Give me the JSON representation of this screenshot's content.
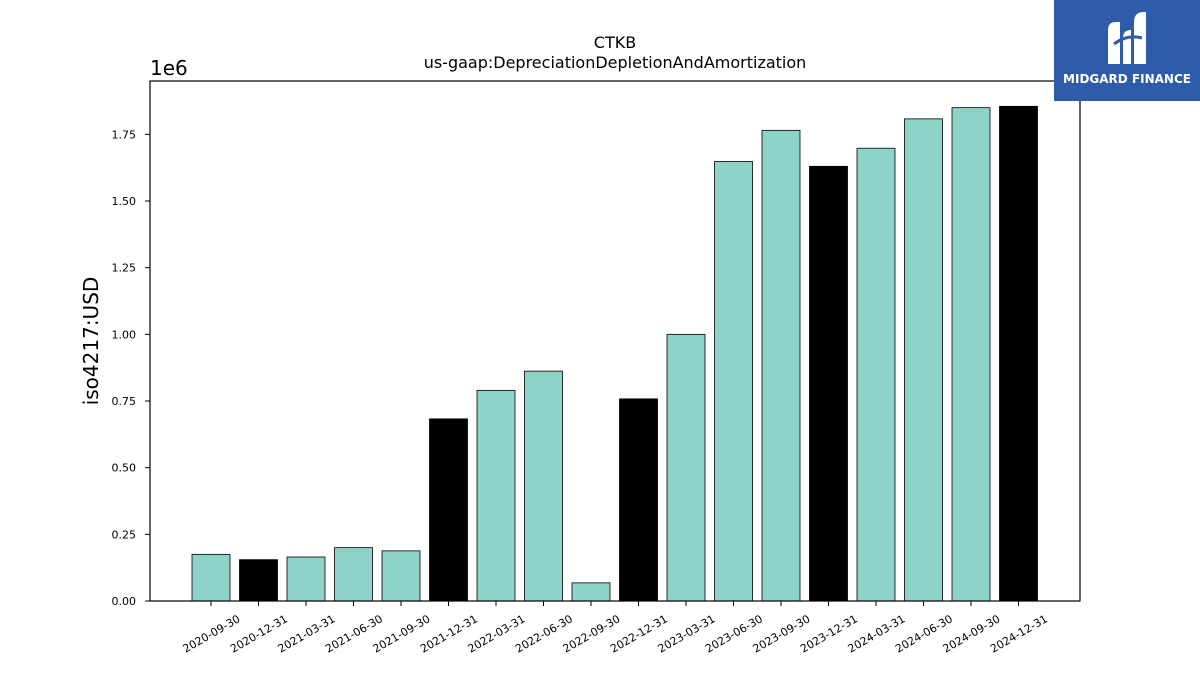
{
  "chart_data": {
    "type": "bar",
    "title": "CTKB",
    "subtitle": "us-gaap:DepreciationDepletionAndAmortization",
    "ylabel": "iso4217:USD",
    "y_scale_label": "1e6",
    "ylim": [
      0,
      1950000
    ],
    "y_ticks": [
      0,
      250000,
      500000,
      750000,
      1000000,
      1250000,
      1500000,
      1750000
    ],
    "y_tick_labels": [
      "0.00",
      "0.25",
      "0.50",
      "0.75",
      "1.00",
      "1.25",
      "1.50",
      "1.75"
    ],
    "categories": [
      "2020-09-30",
      "2020-12-31",
      "2021-03-31",
      "2021-06-30",
      "2021-09-30",
      "2021-12-31",
      "2022-03-31",
      "2022-06-30",
      "2022-09-30",
      "2022-12-31",
      "2023-03-31",
      "2023-06-30",
      "2023-09-30",
      "2023-12-31",
      "2024-03-31",
      "2024-06-30",
      "2024-09-30",
      "2024-12-31"
    ],
    "values": [
      175000,
      155000,
      165000,
      200000,
      188000,
      683000,
      790000,
      862000,
      68000,
      758000,
      1000000,
      1648000,
      1765000,
      1630000,
      1698000,
      1808000,
      1850000,
      1855000
    ],
    "bar_colors": [
      "#8dd3c7",
      "#000000",
      "#8dd3c7",
      "#8dd3c7",
      "#8dd3c7",
      "#000000",
      "#8dd3c7",
      "#8dd3c7",
      "#8dd3c7",
      "#000000",
      "#8dd3c7",
      "#8dd3c7",
      "#8dd3c7",
      "#000000",
      "#8dd3c7",
      "#8dd3c7",
      "#8dd3c7",
      "#000000"
    ],
    "grid": false
  },
  "logo": {
    "name": "MIDGARD FINANCE",
    "background": "#2f5bab"
  }
}
